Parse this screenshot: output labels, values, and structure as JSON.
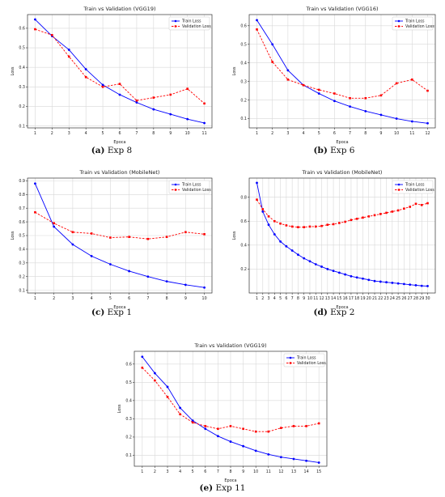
{
  "captions": [
    {
      "tag": "(a)",
      "text": "Exp 8"
    },
    {
      "tag": "(b)",
      "text": "Exp 6"
    },
    {
      "tag": "(c)",
      "text": "Exp 1"
    },
    {
      "tag": "(d)",
      "text": "Exp 2"
    },
    {
      "tag": "(e)",
      "text": "Exp 11"
    }
  ],
  "colors": {
    "train": "#0000ff",
    "validation": "#ff0000"
  },
  "chart_data": [
    {
      "type": "line",
      "title": "Train vs Validation (VGG19)",
      "xlabel": "Epoca",
      "ylabel": "Loss",
      "x": [
        1,
        2,
        3,
        4,
        5,
        6,
        7,
        8,
        9,
        10,
        11
      ],
      "ylim": [
        0.09,
        0.67
      ],
      "yticks": [
        0.1,
        0.2,
        0.3,
        0.4,
        0.5,
        0.6
      ],
      "grid": true,
      "legend": "top-right",
      "series": [
        {
          "name": "Train Loss",
          "style": "solid",
          "values": [
            0.645,
            0.56,
            0.49,
            0.39,
            0.31,
            0.26,
            0.22,
            0.185,
            0.16,
            0.135,
            0.115
          ]
        },
        {
          "name": "Validation Loss",
          "style": "dashed",
          "values": [
            0.595,
            0.565,
            0.455,
            0.35,
            0.3,
            0.315,
            0.23,
            0.245,
            0.26,
            0.29,
            0.215
          ]
        }
      ]
    },
    {
      "type": "line",
      "title": "Train vs Validation (VGG16)",
      "xlabel": "Epoca",
      "ylabel": "Loss",
      "x": [
        1,
        2,
        3,
        4,
        5,
        6,
        7,
        8,
        9,
        10,
        11,
        12
      ],
      "ylim": [
        0.05,
        0.66
      ],
      "yticks": [
        0.1,
        0.2,
        0.3,
        0.4,
        0.5,
        0.6
      ],
      "grid": true,
      "legend": "top-right",
      "series": [
        {
          "name": "Train Loss",
          "style": "solid",
          "values": [
            0.63,
            0.5,
            0.36,
            0.28,
            0.235,
            0.195,
            0.165,
            0.14,
            0.12,
            0.1,
            0.085,
            0.075
          ]
        },
        {
          "name": "Validation Loss",
          "style": "dashed",
          "values": [
            0.58,
            0.405,
            0.31,
            0.28,
            0.255,
            0.235,
            0.21,
            0.21,
            0.225,
            0.29,
            0.31,
            0.25
          ]
        }
      ]
    },
    {
      "type": "line",
      "title": "Train vs Validation (MobileNet)",
      "xlabel": "Epoca",
      "ylabel": "Loss",
      "x": [
        1,
        2,
        3,
        4,
        5,
        6,
        7,
        8,
        9,
        10
      ],
      "ylim": [
        0.08,
        0.92
      ],
      "yticks": [
        0.1,
        0.2,
        0.3,
        0.4,
        0.5,
        0.6,
        0.7,
        0.8,
        0.9
      ],
      "grid": true,
      "legend": "top-right",
      "series": [
        {
          "name": "Train Loss",
          "style": "solid",
          "values": [
            0.88,
            0.565,
            0.435,
            0.35,
            0.29,
            0.24,
            0.2,
            0.165,
            0.14,
            0.12
          ]
        },
        {
          "name": "Validation Loss",
          "style": "dashed",
          "values": [
            0.67,
            0.59,
            0.525,
            0.515,
            0.485,
            0.49,
            0.475,
            0.49,
            0.525,
            0.51
          ]
        }
      ]
    },
    {
      "type": "line",
      "title": "Train vs Validation (MobileNet)",
      "xlabel": "Epoca",
      "ylabel": "Loss",
      "x": [
        1,
        2,
        3,
        4,
        5,
        6,
        7,
        8,
        9,
        10,
        11,
        12,
        13,
        14,
        15,
        16,
        17,
        18,
        19,
        20,
        21,
        22,
        23,
        24,
        25,
        26,
        27,
        28,
        29,
        30
      ],
      "ylim": [
        0.0,
        0.96
      ],
      "yticks": [
        0.2,
        0.4,
        0.6,
        0.8
      ],
      "grid": true,
      "legend": "top-right",
      "series": [
        {
          "name": "Train Loss",
          "style": "solid",
          "values": [
            0.92,
            0.68,
            0.57,
            0.49,
            0.43,
            0.39,
            0.355,
            0.32,
            0.29,
            0.265,
            0.24,
            0.22,
            0.2,
            0.185,
            0.17,
            0.155,
            0.14,
            0.13,
            0.12,
            0.11,
            0.1,
            0.095,
            0.09,
            0.085,
            0.08,
            0.075,
            0.07,
            0.065,
            0.06,
            0.058
          ]
        },
        {
          "name": "Validation Loss",
          "style": "dashed",
          "values": [
            0.78,
            0.7,
            0.64,
            0.6,
            0.58,
            0.565,
            0.555,
            0.55,
            0.55,
            0.555,
            0.555,
            0.56,
            0.57,
            0.575,
            0.585,
            0.595,
            0.61,
            0.62,
            0.63,
            0.64,
            0.65,
            0.66,
            0.67,
            0.68,
            0.69,
            0.705,
            0.72,
            0.745,
            0.735,
            0.75
          ]
        }
      ]
    },
    {
      "type": "line",
      "title": "Train vs Validation (VGG19)",
      "xlabel": "Epoca",
      "ylabel": "Loss",
      "x": [
        1,
        2,
        3,
        4,
        5,
        6,
        7,
        8,
        9,
        10,
        11,
        12,
        13,
        14,
        15
      ],
      "ylim": [
        0.04,
        0.67
      ],
      "yticks": [
        0.1,
        0.2,
        0.3,
        0.4,
        0.5,
        0.6
      ],
      "grid": true,
      "legend": "top-right",
      "series": [
        {
          "name": "Train Loss",
          "style": "solid",
          "values": [
            0.64,
            0.55,
            0.475,
            0.36,
            0.29,
            0.245,
            0.205,
            0.175,
            0.15,
            0.125,
            0.105,
            0.09,
            0.08,
            0.07,
            0.06
          ]
        },
        {
          "name": "Validation Loss",
          "style": "dashed",
          "values": [
            0.58,
            0.51,
            0.42,
            0.325,
            0.28,
            0.26,
            0.245,
            0.26,
            0.245,
            0.23,
            0.23,
            0.25,
            0.26,
            0.26,
            0.275
          ]
        }
      ]
    }
  ]
}
